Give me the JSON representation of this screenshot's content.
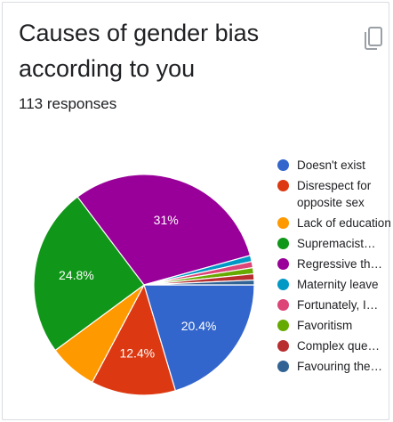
{
  "card": {
    "title": "Causes of gender bias according to you",
    "responses": "113 responses",
    "copy_icon": "copy-icon"
  },
  "chart_data": {
    "type": "pie",
    "title": "Causes of gender bias according to you",
    "legend_position": "right",
    "slices": [
      {
        "label": "Doesn't exist",
        "value": 20.4,
        "display": "20.4%",
        "color": "#3366cc"
      },
      {
        "label": "Disrespect for opposite sex",
        "value": 12.4,
        "display": "12.4%",
        "color": "#dc3912"
      },
      {
        "label": "Lack of education",
        "value": 7.1,
        "display": "",
        "color": "#ff9900"
      },
      {
        "label": "Supremacist…",
        "value": 24.8,
        "display": "24.8%",
        "color": "#109618"
      },
      {
        "label": "Regressive th…",
        "value": 31.0,
        "display": "31%",
        "color": "#990099"
      },
      {
        "label": "Maternity leave",
        "value": 0.9,
        "display": "",
        "color": "#0099c6"
      },
      {
        "label": "Fortunately, I…",
        "value": 0.9,
        "display": "",
        "color": "#dd4477"
      },
      {
        "label": "Favoritism",
        "value": 0.9,
        "display": "",
        "color": "#66aa00"
      },
      {
        "label": "Complex que…",
        "value": 0.9,
        "display": "",
        "color": "#b82e2e"
      },
      {
        "label": "Favouring the…",
        "value": 0.7,
        "display": "",
        "color": "#316395"
      }
    ]
  }
}
